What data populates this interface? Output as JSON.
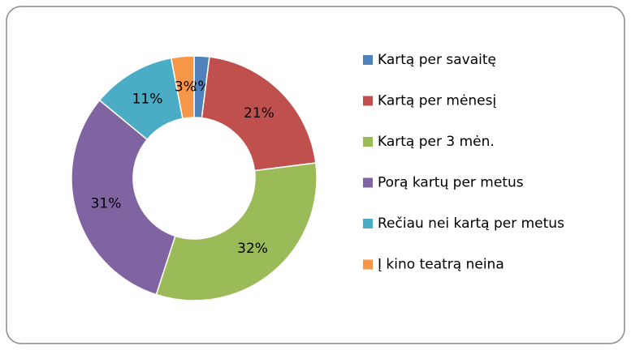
{
  "chart_data": {
    "type": "donut",
    "categories": [
      "Kartą per savaitę",
      "Kartą per mėnesį",
      "Kartą per 3 mėn.",
      "Porą kartų per metus",
      "Rečiau nei kartą per metus",
      "Į kino teatrą neina"
    ],
    "values": [
      2,
      21,
      32,
      31,
      11,
      3
    ],
    "value_labels": [
      "2%",
      "21%",
      "32%",
      "31%",
      "11%",
      "3%"
    ],
    "colors": [
      "#4f81bd",
      "#c0504d",
      "#9bbb59",
      "#8064a2",
      "#4bacc6",
      "#f79646"
    ],
    "legend": "right"
  }
}
